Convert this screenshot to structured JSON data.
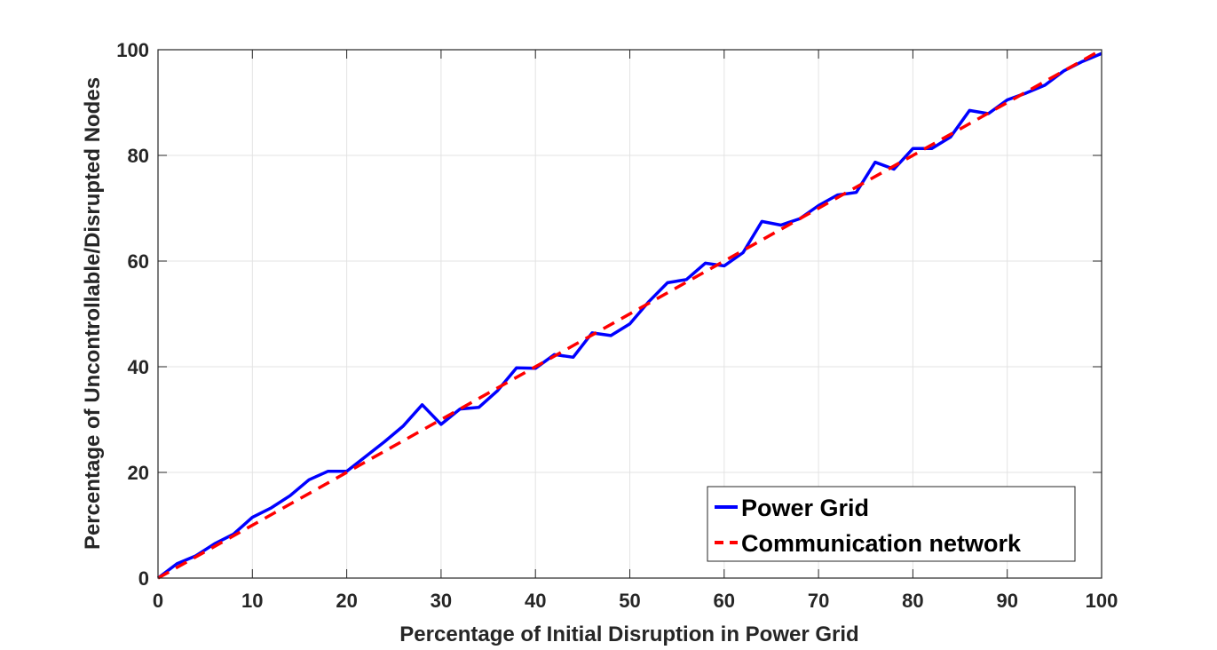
{
  "chart_data": {
    "type": "line",
    "title": "",
    "xlabel": "Percentage of Initial Disruption in Power Grid",
    "ylabel": "Percentage of Uncontrollable/Disrupted Nodes",
    "xlim": [
      0,
      100
    ],
    "ylim": [
      0,
      100
    ],
    "xticks": [
      0,
      10,
      20,
      30,
      40,
      50,
      60,
      70,
      80,
      90,
      100
    ],
    "yticks": [
      0,
      20,
      40,
      60,
      80,
      100
    ],
    "grid": true,
    "legend_position": "bottom-right",
    "series": [
      {
        "name": "Power Grid",
        "color": "#0000FF",
        "style": "solid",
        "x": [
          0,
          2,
          4,
          6,
          8,
          10,
          12,
          14,
          16,
          18,
          20,
          22,
          24,
          26,
          28,
          30,
          32,
          34,
          36,
          38,
          40,
          42,
          44,
          46,
          48,
          50,
          52,
          54,
          56,
          58,
          60,
          62,
          64,
          66,
          68,
          70,
          72,
          74,
          76,
          78,
          80,
          82,
          84,
          86,
          88,
          90,
          92,
          94,
          96,
          98,
          100
        ],
        "y": [
          0,
          2.7,
          4.2,
          6.5,
          8.3,
          11.5,
          13.3,
          15.6,
          18.6,
          20.2,
          20.2,
          23.0,
          25.8,
          28.8,
          32.8,
          29.1,
          32.0,
          32.3,
          35.5,
          39.8,
          39.7,
          42.3,
          41.8,
          46.4,
          45.9,
          48.1,
          52.3,
          55.9,
          56.5,
          59.6,
          59.1,
          61.6,
          67.5,
          66.8,
          68.0,
          70.5,
          72.5,
          73.0,
          78.7,
          77.4,
          81.3,
          81.3,
          83.5,
          88.5,
          87.9,
          90.5,
          91.8,
          93.3,
          96.0,
          97.8,
          99.3
        ]
      },
      {
        "name": "Communication network",
        "color": "#FF0000",
        "style": "dashed",
        "x": [
          0,
          100
        ],
        "y": [
          0,
          100
        ]
      }
    ]
  }
}
